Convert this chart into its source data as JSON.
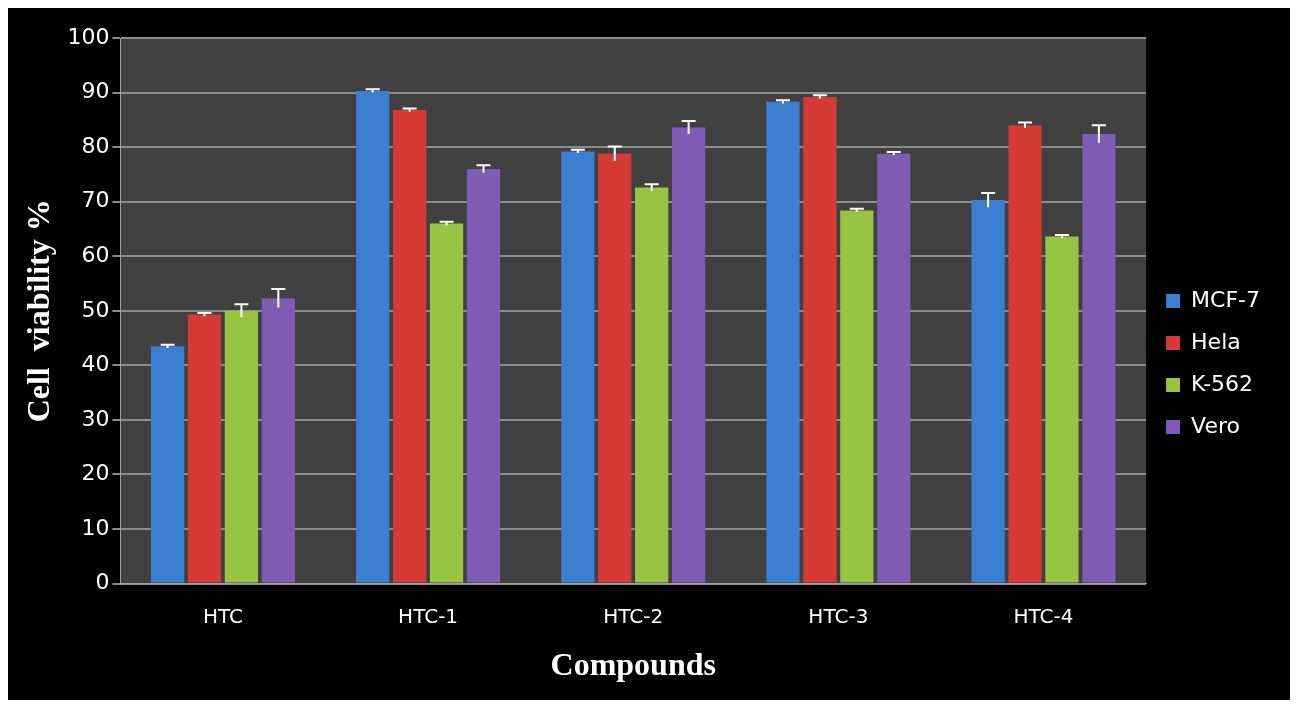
{
  "chart_data": {
    "type": "bar",
    "xlabel": "Compounds",
    "ylabel": "Cell  viability %",
    "categories": [
      "HTC",
      "HTC-1",
      "HTC-2",
      "HTC-3",
      "HTC-4"
    ],
    "series": [
      {
        "name": "MCF-7",
        "color": "#3a7fd0",
        "values": [
          43.5,
          90.3,
          79.2,
          88.3,
          70.3
        ],
        "errors": [
          0.3,
          0.3,
          0.3,
          0.3,
          1.3
        ]
      },
      {
        "name": "Hela",
        "color": "#d63a36",
        "values": [
          49.3,
          86.8,
          78.8,
          89.2,
          84
        ],
        "errors": [
          0.3,
          0.3,
          1.3,
          0.3,
          0.5
        ]
      },
      {
        "name": "K-562",
        "color": "#98c444",
        "values": [
          50,
          66,
          72.6,
          68.4,
          63.6
        ],
        "errors": [
          1.2,
          0.3,
          0.6,
          0.3,
          0.3
        ]
      },
      {
        "name": "Vero",
        "color": "#7f5bb3",
        "values": [
          52.3,
          76,
          83.6,
          78.8,
          82.4
        ],
        "errors": [
          1.7,
          0.7,
          1.2,
          0.3,
          1.6
        ]
      }
    ],
    "ylim": [
      0,
      100
    ],
    "yticks": [
      0,
      10,
      20,
      30,
      40,
      50,
      60,
      70,
      80,
      90,
      100
    ],
    "grid": "y",
    "legend": "right"
  }
}
